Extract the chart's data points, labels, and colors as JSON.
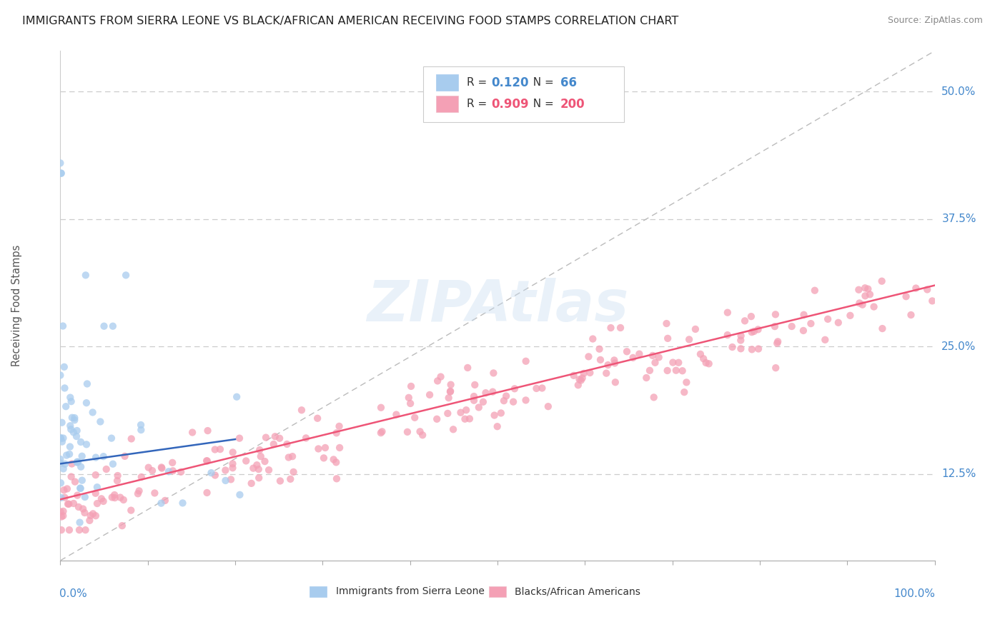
{
  "title": "IMMIGRANTS FROM SIERRA LEONE VS BLACK/AFRICAN AMERICAN RECEIVING FOOD STAMPS CORRELATION CHART",
  "source": "Source: ZipAtlas.com",
  "ylabel": "Receiving Food Stamps",
  "ytick_labels": [
    "12.5%",
    "25.0%",
    "37.5%",
    "50.0%"
  ],
  "ytick_values": [
    0.125,
    0.25,
    0.375,
    0.5
  ],
  "xlim": [
    0.0,
    1.0
  ],
  "ylim": [
    0.04,
    0.54
  ],
  "legend1_label": "Immigrants from Sierra Leone",
  "legend2_label": "Blacks/African Americans",
  "R1": "0.120",
  "N1": "66",
  "R2": "0.909",
  "N2": "200",
  "color_blue": "#A8CCEE",
  "color_pink": "#F4A0B5",
  "color_blue_text": "#4488CC",
  "color_pink_text": "#EE5577",
  "color_blue_line": "#3366BB",
  "color_pink_line": "#EE5577",
  "background_color": "#FFFFFF",
  "grid_color": "#CCCCCC",
  "title_fontsize": 11.5,
  "source_fontsize": 9,
  "scatter_size": 55
}
